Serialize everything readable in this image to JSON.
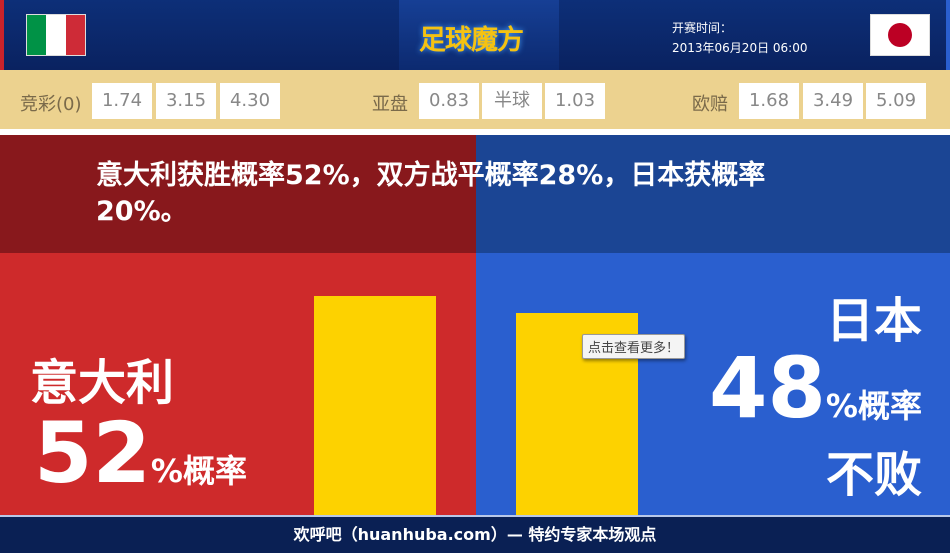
{
  "header": {
    "logo": "足球魔方",
    "kickoff_label": "开赛时间：",
    "kickoff_time": "2013年06月20日 06:00",
    "home_flag": "italy-flag",
    "away_flag": "japan-flag"
  },
  "odds": {
    "jingcai": {
      "label": "竞彩(0)",
      "values": [
        "1.74",
        "3.15",
        "4.30"
      ]
    },
    "asian": {
      "label": "亚盘",
      "values": [
        "0.83",
        "半球",
        "1.03"
      ]
    },
    "euro": {
      "label": "欧赔",
      "values": [
        "1.68",
        "3.49",
        "5.09"
      ]
    }
  },
  "headline": "意大利获胜概率52%，双方战平概率28%，日本获概率20%。",
  "home": {
    "team": "意大利",
    "pct": "52",
    "suffix": "%概率",
    "bar_value": 52
  },
  "away": {
    "team": "日本",
    "pct": "48",
    "suffix": "%概率",
    "extra": "不败",
    "bar_value": 48
  },
  "tooltip": "点击查看更多！",
  "footer": "欢呼吧（huanhuba.com）— 特约专家本场观点",
  "colors": {
    "home": "#ce2a2b",
    "away": "#2a5fcf",
    "bar": "#fdd200",
    "odds_bg": "#ecd28f"
  }
}
